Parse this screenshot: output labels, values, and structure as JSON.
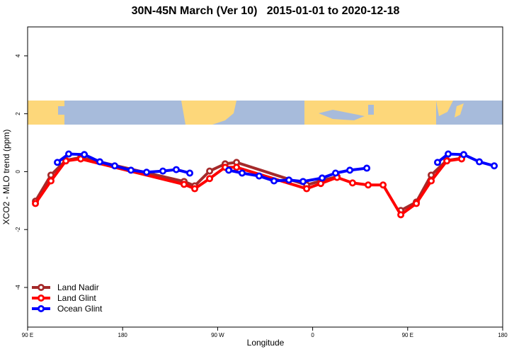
{
  "chart_data": {
    "type": "line",
    "title": "30N-45N March (Ver 10)   2015-01-01 to 2020-12-18",
    "x_label": "Longitude",
    "y_label": "XCO2 - MLO trend (ppm)",
    "xlim": [
      90,
      540
    ],
    "ylim": [
      -5.37,
      5
    ],
    "xticks": [
      {
        "value": 90,
        "label": "90 E"
      },
      180,
      {
        "value": 270,
        "label": "90 W"
      },
      {
        "value": 360,
        "label": "0"
      },
      {
        "value": 450,
        "label": "90 E"
      },
      {
        "value": 540,
        "label": "180"
      }
    ],
    "yticks": [
      -4,
      -2,
      0,
      2,
      4
    ],
    "legend": "bottom-left",
    "series": [
      {
        "name": "Land Nadir",
        "color": "#a52a2a",
        "x": [
          97.4,
          112.1,
          126.2,
          140.3,
          238.2,
          248.3,
          262.4,
          277.1,
          287.9,
          354.3,
          367.7,
          383.1,
          397.8,
          412.6,
          426.7,
          443.5,
          458.2,
          472.3,
          487.1,
          501.1
        ],
        "values": [
          -1.02,
          -0.12,
          0.39,
          0.49,
          -0.34,
          -0.49,
          0.02,
          0.27,
          0.32,
          -0.46,
          -0.32,
          -0.17,
          null,
          null,
          null,
          -1.34,
          -1.05,
          -0.12,
          0.39,
          0.46
        ]
      },
      {
        "name": "Land Glint",
        "color": "#ff0000",
        "x": [
          97.4,
          112.1,
          126.2,
          140.3,
          238.2,
          248.3,
          262.4,
          277.1,
          287.9,
          354.3,
          367.7,
          383.1,
          397.8,
          412.6,
          426.7,
          443.5,
          458.2,
          472.3,
          487.1,
          501.1
        ],
        "values": [
          -1.1,
          -0.32,
          0.37,
          0.44,
          -0.44,
          -0.59,
          -0.24,
          0.15,
          0.15,
          -0.59,
          -0.41,
          -0.2,
          -0.39,
          -0.46,
          -0.46,
          -1.49,
          -1.1,
          -0.32,
          0.37,
          0.44
        ]
      },
      {
        "name": "Ocean Glint",
        "color": "#0000ff",
        "x": [
          118.2,
          128.9,
          143.7,
          158.4,
          172.5,
          187.9,
          202.7,
          218.1,
          230.8,
          243.6,
          262,
          280.5,
          293.2,
          309.3,
          323.4,
          337.5,
          350.9,
          369,
          381.7,
          395.2,
          411.3,
          445,
          478.3,
          488.4,
          503.1,
          517.9,
          532
        ],
        "values": [
          0.32,
          0.61,
          0.59,
          0.34,
          0.2,
          0.05,
          -0.02,
          0.02,
          0.07,
          -0.05,
          null,
          0.05,
          -0.05,
          -0.15,
          -0.32,
          -0.29,
          -0.34,
          -0.22,
          -0.05,
          0.05,
          0.12,
          null,
          0.32,
          0.61,
          0.59,
          0.34,
          0.2
        ]
      }
    ]
  }
}
